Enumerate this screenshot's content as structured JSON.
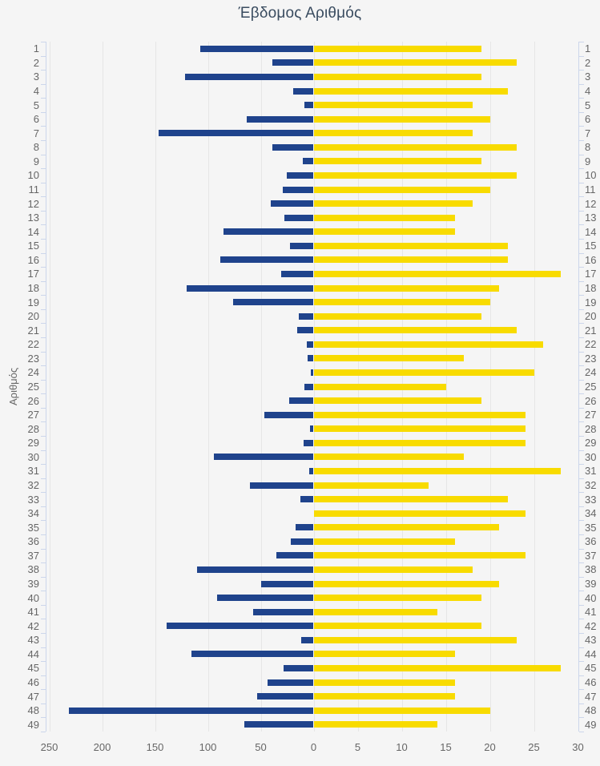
{
  "title": "Έβδομος Αριθμός",
  "y_axis_title": "Αριθμός",
  "colors": {
    "background": "#f5f5f5",
    "left_bar": "#1f438c",
    "right_bar": "#f8db00",
    "gridline": "#e6e6e6",
    "axis_line": "#ccd6eb",
    "label": "#666666",
    "title": "#3a4c60"
  },
  "chart_data": {
    "type": "bar",
    "layout": "diverging-horizontal",
    "title": "Έβδομος Αριθμός",
    "ylabel": "Αριθμός",
    "grid": true,
    "legend": false,
    "categories": [
      1,
      2,
      3,
      4,
      5,
      6,
      7,
      8,
      9,
      10,
      11,
      12,
      13,
      14,
      15,
      16,
      17,
      18,
      19,
      20,
      21,
      22,
      23,
      24,
      25,
      26,
      27,
      28,
      29,
      30,
      31,
      32,
      33,
      34,
      35,
      36,
      37,
      38,
      39,
      40,
      41,
      42,
      43,
      44,
      45,
      46,
      47,
      48,
      49
    ],
    "series": [
      {
        "name": "left-series",
        "side": "left",
        "color": "#1f438c",
        "xlim": [
          0,
          250
        ],
        "values": [
          107,
          39,
          121,
          19,
          8,
          63,
          146,
          39,
          10,
          25,
          29,
          40,
          27,
          85,
          22,
          88,
          30,
          120,
          76,
          14,
          15,
          6,
          5,
          2,
          8,
          23,
          46,
          3,
          9,
          94,
          4,
          60,
          12,
          0,
          17,
          21,
          35,
          110,
          49,
          91,
          57,
          139,
          11,
          115,
          28,
          43,
          53,
          231,
          65
        ]
      },
      {
        "name": "right-series",
        "side": "right",
        "color": "#f8db00",
        "xlim": [
          0,
          30
        ],
        "values": [
          19,
          23,
          19,
          22,
          18,
          20,
          18,
          23,
          19,
          23,
          20,
          18,
          16,
          16,
          22,
          22,
          28,
          21,
          20,
          19,
          23,
          26,
          17,
          25,
          15,
          19,
          24,
          24,
          24,
          17,
          28,
          13,
          22,
          24,
          21,
          16,
          24,
          18,
          21,
          19,
          14,
          19,
          23,
          16,
          28,
          16,
          16,
          20,
          14
        ]
      }
    ],
    "left_axis_ticks": [
      250,
      200,
      150,
      100,
      50
    ],
    "zero_label": "0",
    "right_axis_ticks": [
      5,
      10,
      15,
      20,
      25,
      30
    ]
  }
}
